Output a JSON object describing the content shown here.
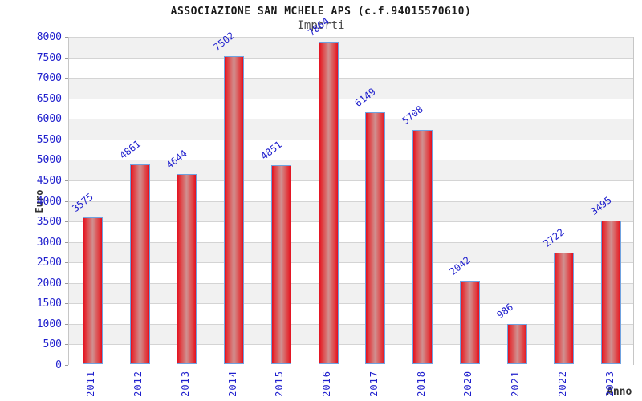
{
  "title": "ASSOCIAZIONE SAN MCHELE APS (c.f.94015570610)",
  "subtitle": "Importi",
  "axes": {
    "y_title": "Euro",
    "x_title": "Anno"
  },
  "chart_data": {
    "type": "bar",
    "title": "ASSOCIAZIONE SAN MCHELE APS (c.f.94015570610)",
    "subtitle": "Importi",
    "xlabel": "Anno",
    "ylabel": "Euro",
    "categories": [
      "2011",
      "2012",
      "2013",
      "2014",
      "2015",
      "2016",
      "2017",
      "2018",
      "2020",
      "2021",
      "2022",
      "2023"
    ],
    "values": [
      3575,
      4861,
      4644,
      7502,
      4851,
      7864,
      6149,
      5708,
      2042,
      986,
      2722,
      3495
    ],
    "ylim": [
      0,
      8000
    ],
    "ytick_step": 500,
    "grid": "horizontal gridlines with alternating gray/white bands",
    "legend": "none",
    "bar_labels_rotated": true,
    "colors": {
      "bar_edge_red": "#e30f20",
      "bar_center": "#d09191",
      "bar_border_blue": "#6fa2e0",
      "label_blue": "#1e1ecd",
      "band_gray": "#f1f1f1",
      "grid_gray": "#d4d4d4",
      "axis_gray": "#c6c6c6",
      "title_black": "#1a1a1a"
    }
  }
}
